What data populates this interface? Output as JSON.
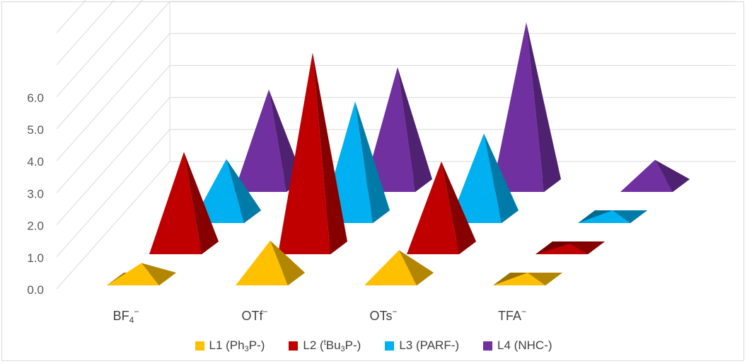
{
  "chart_data": {
    "type": "bar",
    "style": "3d-pyramid",
    "categories": [
      {
        "base": "BF",
        "sub": "4",
        "sup": "−"
      },
      {
        "base": "OTf",
        "sub": "",
        "sup": "−"
      },
      {
        "base": "OTs",
        "sub": "",
        "sup": "−"
      },
      {
        "base": "TFA",
        "sub": "",
        "sup": "−"
      }
    ],
    "series": [
      {
        "name": "L1 (Ph3P-)",
        "color": "#FFC000",
        "values": [
          0.5,
          1.2,
          0.9,
          0.2
        ]
      },
      {
        "name": "L2 (tBu3P-)",
        "color": "#C00000",
        "values": [
          3.0,
          6.1,
          2.7,
          0.0
        ]
      },
      {
        "name": "L3 (PARF-)",
        "color": "#00B0F0",
        "values": [
          1.8,
          3.6,
          2.6,
          0.2
        ]
      },
      {
        "name": "L4 (NHC-)",
        "color": "#7030A0",
        "values": [
          3.0,
          3.7,
          5.1,
          0.8
        ]
      }
    ],
    "y_ticks": [
      "0.0",
      "1.0",
      "2.0",
      "3.0",
      "4.0",
      "5.0",
      "6.0"
    ],
    "ylim": [
      0,
      7
    ],
    "grid": true,
    "legend_position": "bottom"
  },
  "legend": [
    {
      "pre": "L1 (Ph",
      "sub": "3",
      "post": "P-)",
      "sup": "",
      "color": "#FFC000"
    },
    {
      "pre": "L2 (",
      "sup": "t",
      "mid": "Bu",
      "sub": "3",
      "post": "P-)",
      "color": "#C00000"
    },
    {
      "pre": "L3 (PARF-)",
      "sub": "",
      "post": "",
      "sup": "",
      "color": "#00B0F0"
    },
    {
      "pre": "L4 (NHC-)",
      "sub": "",
      "post": "",
      "sup": "",
      "color": "#7030A0"
    }
  ]
}
